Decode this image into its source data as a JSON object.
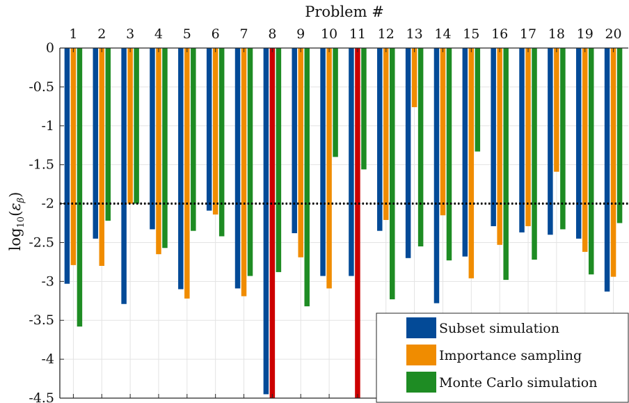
{
  "chart_data": {
    "type": "bar",
    "title": "",
    "xlabel": "Problem #",
    "ylabel": {
      "base": "log",
      "base_sub": "10",
      "open": "(",
      "eps": "ε",
      "eps_sub": "β",
      "close": ")"
    },
    "x_axis_position": "top",
    "categories": [
      "1",
      "2",
      "3",
      "4",
      "5",
      "6",
      "7",
      "8",
      "9",
      "10",
      "11",
      "12",
      "13",
      "14",
      "15",
      "16",
      "17",
      "18",
      "19",
      "20"
    ],
    "ylim": [
      -4.5,
      0
    ],
    "yticks": [
      0,
      -0.5,
      -1,
      -1.5,
      -2,
      -2.5,
      -3,
      -3.5,
      -4,
      -4.5
    ],
    "ytick_labels": [
      "0",
      "-0.5",
      "-1",
      "-1.5",
      "-2",
      "-2.5",
      "-3",
      "-3.5",
      "-4",
      "-4.5"
    ],
    "grid": true,
    "reference_line": {
      "y": -2,
      "style": "dotted",
      "color": "#000000"
    },
    "series": [
      {
        "name": "Subset simulation",
        "color": "#034a97",
        "values": [
          -3.03,
          -2.45,
          -3.29,
          -2.33,
          -3.1,
          -2.09,
          -3.09,
          -4.45,
          -2.38,
          -2.93,
          -2.93,
          -2.35,
          -2.7,
          -3.28,
          -2.68,
          -2.29,
          -2.37,
          -2.4,
          -2.45,
          -3.13
        ]
      },
      {
        "name": "Importance sampling",
        "color": "#f08c00",
        "values": [
          -2.79,
          -2.8,
          -2.0,
          -2.65,
          -3.22,
          -2.14,
          -3.19,
          -4.5,
          -2.69,
          -3.09,
          -4.5,
          -2.21,
          -0.76,
          -2.15,
          -2.96,
          -2.53,
          -2.29,
          -1.59,
          -2.62,
          -2.94
        ]
      },
      {
        "name": "Monte Carlo simulation",
        "color": "#1e8c23",
        "values": [
          -3.58,
          -2.22,
          -2.0,
          -2.57,
          -2.35,
          -2.42,
          -2.93,
          -2.88,
          -3.32,
          -1.4,
          -1.56,
          -3.23,
          -2.55,
          -2.73,
          -1.33,
          -2.98,
          -2.72,
          -2.33,
          -2.91,
          -2.25
        ]
      }
    ],
    "failed_marker_color": "#cc0000",
    "failed_points": [
      {
        "category": "8",
        "series": "Importance sampling"
      },
      {
        "category": "11",
        "series": "Importance sampling"
      }
    ],
    "legend": {
      "placement": "bottom-right"
    }
  }
}
